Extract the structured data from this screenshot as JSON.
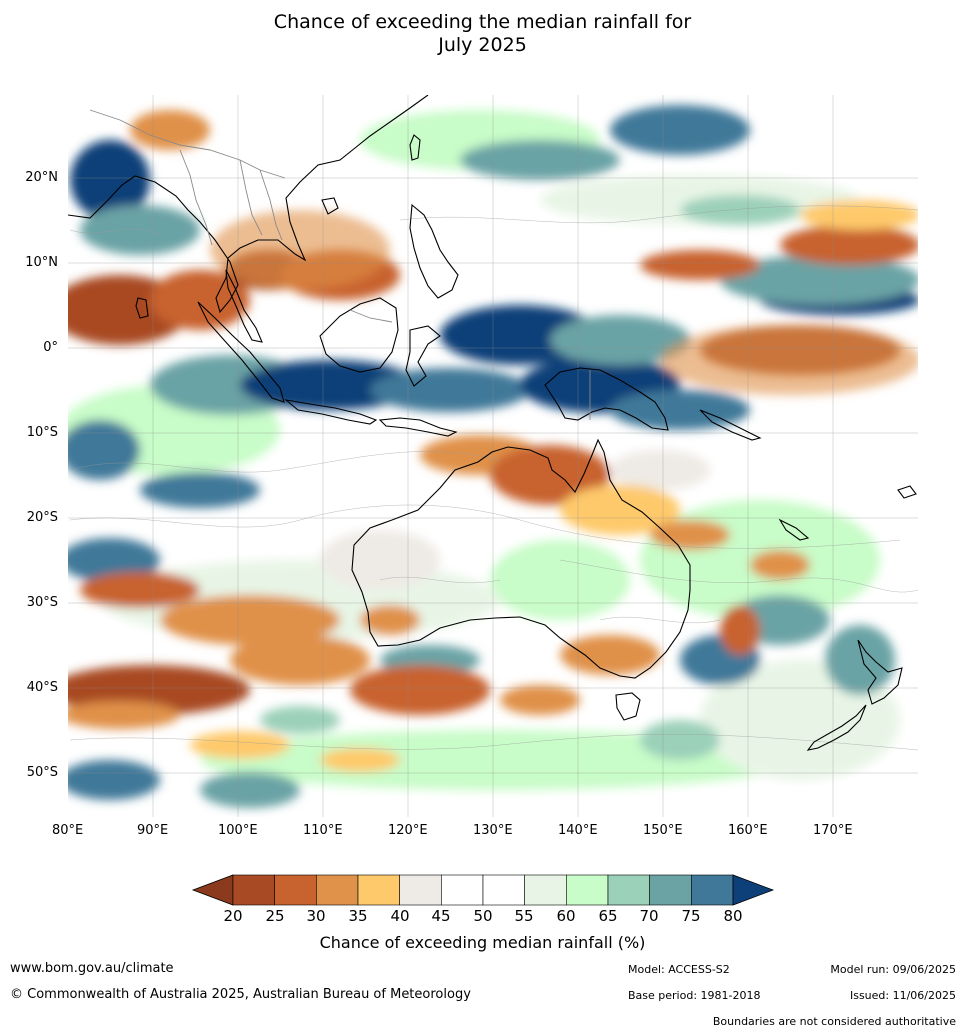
{
  "title_line1": "Chance of exceeding the median rainfall for",
  "title_line2": "July 2025",
  "lat_labels": [
    "20°N",
    "10°N",
    "0°",
    "10°S",
    "20°S",
    "30°S",
    "40°S",
    "50°S"
  ],
  "lon_labels": [
    "80°E",
    "90°E",
    "100°E",
    "110°E",
    "120°E",
    "130°E",
    "140°E",
    "150°E",
    "160°E",
    "170°E"
  ],
  "colorbar": {
    "title": "Chance of exceeding median rainfall (%)",
    "ticks": [
      "20",
      "25",
      "30",
      "35",
      "40",
      "45",
      "50",
      "55",
      "60",
      "65",
      "70",
      "75",
      "80"
    ],
    "under_color": "#8b3a1e",
    "over_color": "#0d3f78",
    "colors": [
      "#a84a23",
      "#c8622f",
      "#e0914a",
      "#fec96a",
      "#eeeae5",
      "#ffffff",
      "#ffffff",
      "#e8f5e6",
      "#c8fcc8",
      "#9bd0b9",
      "#6ba3a5",
      "#407899"
    ]
  },
  "footer": {
    "website": "www.bom.gov.au/climate",
    "copyright": "© Commonwealth of Australia 2025, Australian Bureau of Meteorology",
    "model": "Model: ACCESS-S2",
    "base_period": "Base period: 1981-2018",
    "model_run": "Model run: 09/06/2025",
    "issued": "Issued: 11/06/2025",
    "disclaimer": "Boundaries are not considered authoritative"
  }
}
